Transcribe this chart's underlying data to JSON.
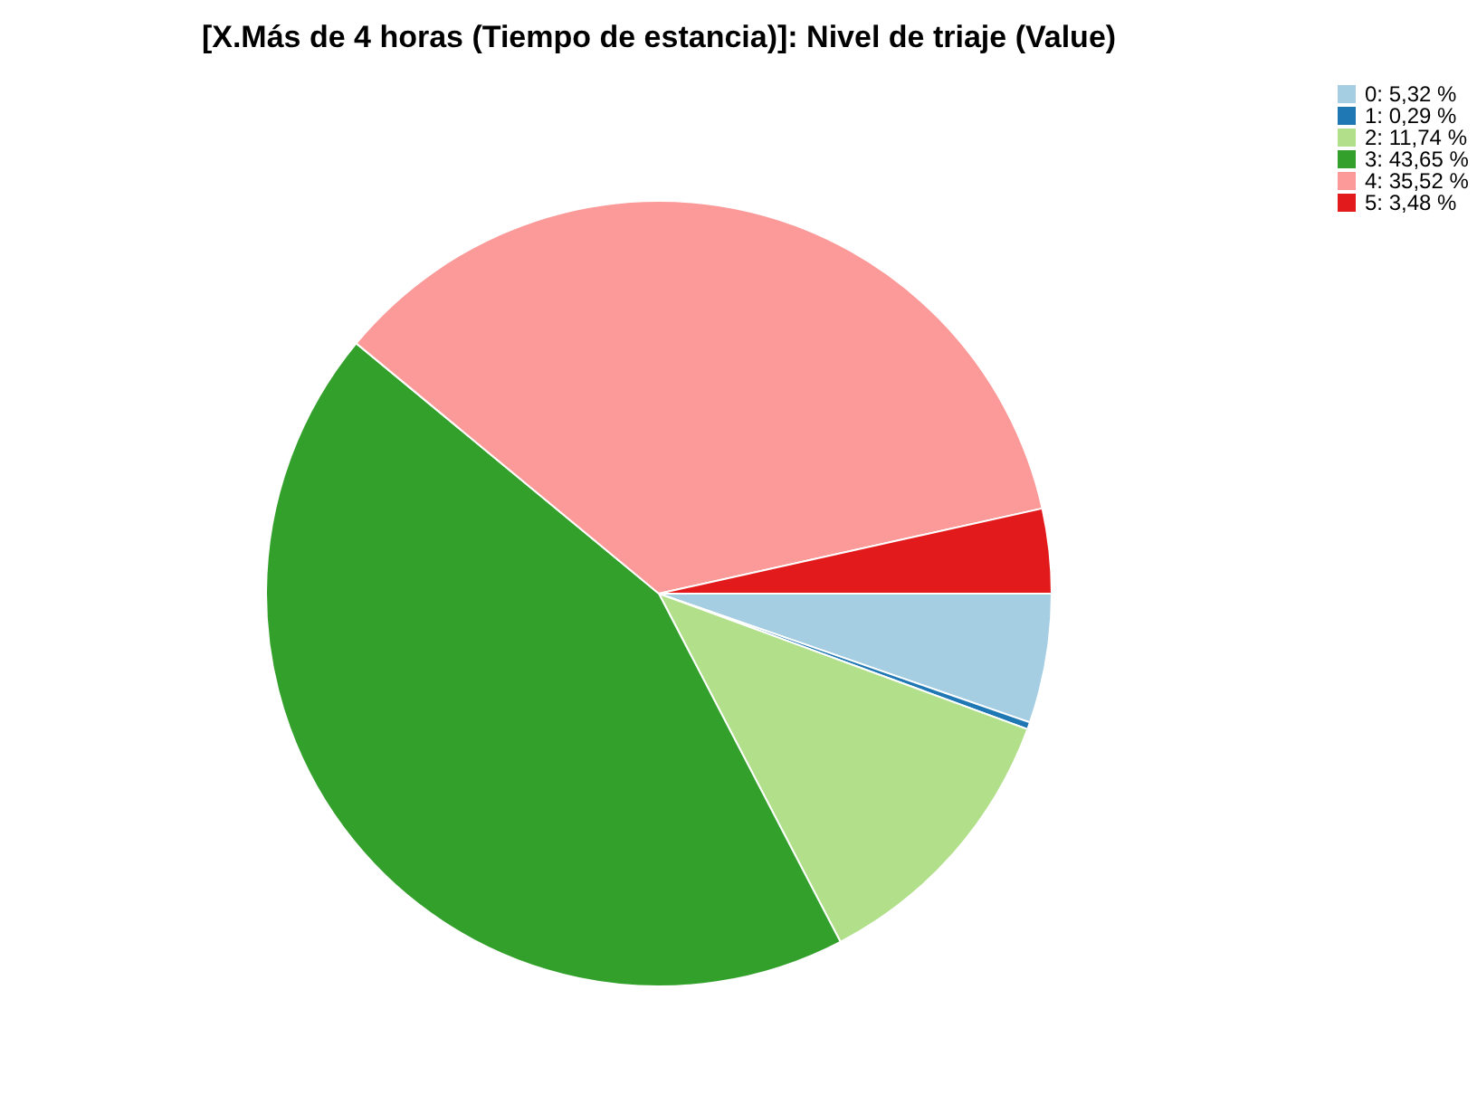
{
  "chart_data": {
    "type": "pie",
    "title": "[X.Más de 4 horas (Tiempo de estancia)]: Nivel de triaje (Value)",
    "categories": [
      "0: 5,32 %",
      "1: 0,29 %",
      "2: 11,74 %",
      "3: 43,65 %",
      "4: 35,52 %",
      "5: 3,48 %"
    ],
    "values": [
      5.32,
      0.29,
      11.74,
      43.65,
      35.52,
      3.48
    ],
    "colors": [
      "#a6cee3",
      "#1f78b4",
      "#b2df8a",
      "#33a02c",
      "#fb9a99",
      "#e31a1c"
    ],
    "legend": "top right"
  }
}
